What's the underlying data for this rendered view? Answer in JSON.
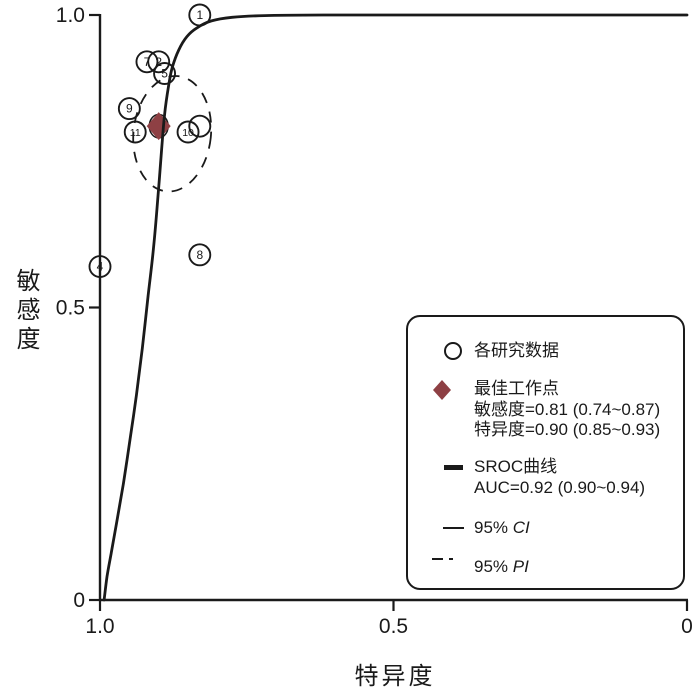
{
  "figure": {
    "background": "#ffffff",
    "ink_color": "#1a1a1a",
    "accent_color": "#8e4044"
  },
  "chart_data": {
    "type": "scatter",
    "title": "",
    "xlabel": "特异度",
    "ylabel": "敏感度",
    "x_axis": {
      "label": "特异度",
      "reversed": true,
      "range": [
        1.0,
        0
      ],
      "ticks": [
        {
          "value": 1.0,
          "label": "1.0"
        },
        {
          "value": 0.5,
          "label": "0.5"
        },
        {
          "value": 0.0,
          "label": "0"
        }
      ]
    },
    "y_axis": {
      "label": "敏感度",
      "range": [
        0,
        1.0
      ],
      "ticks": [
        {
          "value": 1.0,
          "label": "1.0"
        },
        {
          "value": 0.5,
          "label": "0.5"
        },
        {
          "value": 0.0,
          "label": "0"
        }
      ]
    },
    "studies": [
      {
        "label": "1",
        "sens": 1.0,
        "spec": 0.83
      },
      {
        "label": "7",
        "sens": 0.92,
        "spec": 0.92
      },
      {
        "label": "2",
        "sens": 0.92,
        "spec": 0.9
      },
      {
        "label": "5",
        "sens": 0.9,
        "spec": 0.89
      },
      {
        "label": "9",
        "sens": 0.84,
        "spec": 0.95
      },
      {
        "label": "11",
        "sens": 0.8,
        "spec": 0.94
      },
      {
        "label": "",
        "sens": 0.81,
        "spec": 0.83
      },
      {
        "label": "10",
        "sens": 0.8,
        "spec": 0.85
      },
      {
        "label": "4",
        "sens": 0.57,
        "spec": 1.0
      },
      {
        "label": "8",
        "sens": 0.59,
        "spec": 0.83
      }
    ],
    "summary_point": {
      "label": "最佳工作点",
      "sens": 0.81,
      "sens_ci": "0.74~0.87",
      "spec": 0.9,
      "spec_ci": "0.85~0.93"
    },
    "sroc_curve": {
      "auc": 0.92,
      "auc_ci": "0.90~0.94",
      "points": [
        [
          0.993,
          0.0
        ],
        [
          0.988,
          0.04
        ],
        [
          0.981,
          0.08
        ],
        [
          0.972,
          0.13
        ],
        [
          0.96,
          0.2
        ],
        [
          0.948,
          0.28
        ],
        [
          0.938,
          0.35
        ],
        [
          0.928,
          0.43
        ],
        [
          0.918,
          0.52
        ],
        [
          0.909,
          0.6
        ],
        [
          0.902,
          0.68
        ],
        [
          0.895,
          0.77
        ],
        [
          0.89,
          0.83
        ],
        [
          0.883,
          0.88
        ],
        [
          0.877,
          0.91
        ],
        [
          0.866,
          0.94
        ],
        [
          0.852,
          0.963
        ],
        [
          0.835,
          0.978
        ],
        [
          0.81,
          0.99
        ],
        [
          0.775,
          0.996
        ],
        [
          0.72,
          0.999
        ],
        [
          0.62,
          1.0
        ],
        [
          0.45,
          1.0
        ],
        [
          0.2,
          1.0
        ],
        [
          0.0,
          1.0
        ]
      ]
    },
    "ci_ellipse": {
      "center_spec": 0.9,
      "center_sens": 0.81,
      "rx_spec": 0.016,
      "ry_sens": 0.02,
      "rotation_deg": 0
    },
    "pi_ellipse": {
      "center_spec": 0.877,
      "center_sens": 0.797,
      "rx_spec": 0.066,
      "ry_sens": 0.099,
      "rotation_deg": 6
    }
  },
  "legend": {
    "items": {
      "studies": {
        "label": "各研究数据"
      },
      "optimal": {
        "title": "最佳工作点",
        "line1": "敏感度=0.81 (0.74~0.87)",
        "line2": "特异度=0.90 (0.85~0.93)"
      },
      "sroc": {
        "title": "SROC曲线",
        "line1": "AUC=0.92 (0.90~0.94)"
      },
      "ci": {
        "prefix": "95% ",
        "italic": "CI"
      },
      "pi": {
        "prefix": "95% ",
        "italic": "PI"
      }
    }
  }
}
